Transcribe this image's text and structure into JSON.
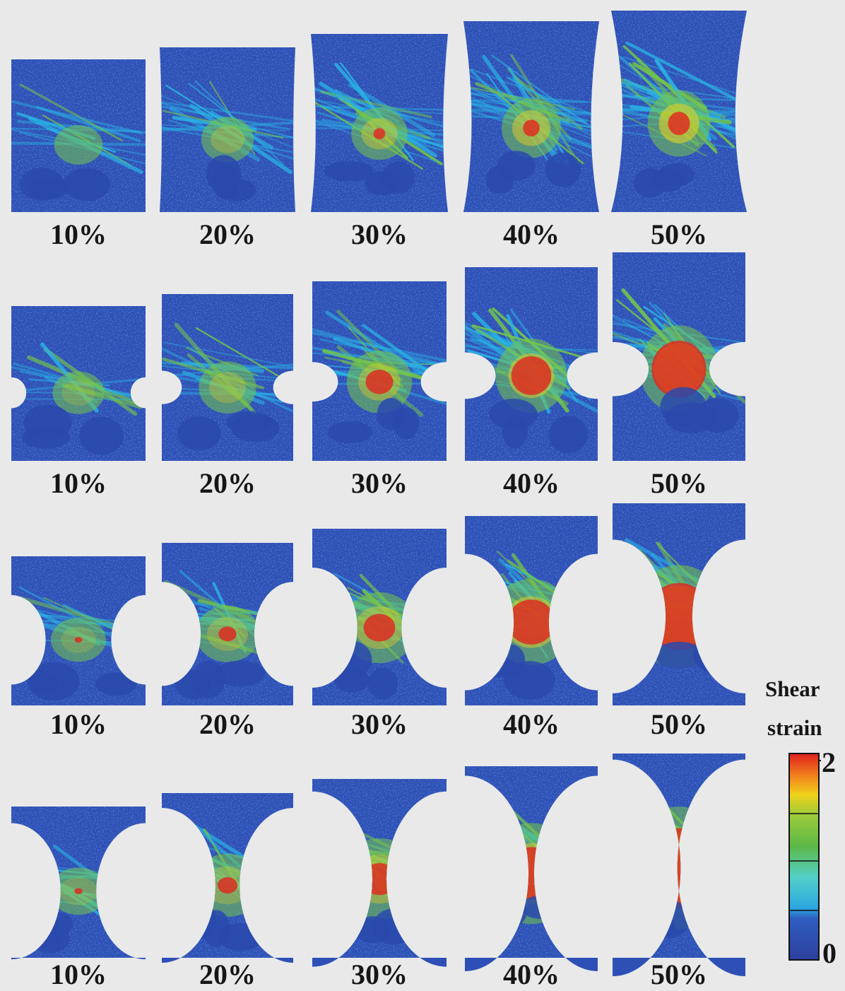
{
  "colormap": {
    "blue": "#2d4fb6",
    "cyan": "#29b5e6",
    "green": "#74c64a",
    "yellow": "#e3d024",
    "red": "#e1241e"
  },
  "rows": [
    {
      "notch": "none",
      "labels": [
        "10%",
        "20%",
        "30%",
        "40%",
        "50%"
      ]
    },
    {
      "notch": "small",
      "labels": [
        "10%",
        "20%",
        "30%",
        "40%",
        "50%"
      ]
    },
    {
      "notch": "medium",
      "labels": [
        "10%",
        "20%",
        "30%",
        "40%",
        "50%"
      ]
    },
    {
      "notch": "large",
      "labels": [
        "10%",
        "20%",
        "30%",
        "40%",
        "50%"
      ]
    }
  ],
  "legend": {
    "title_line1": "Shear",
    "title_line2": "strain",
    "max_label": "2",
    "min_label": "0",
    "range": [
      0,
      2
    ],
    "colors": [
      "#2d4fb6",
      "#29b5e6",
      "#74c64a",
      "#e3d024",
      "#e1241e"
    ]
  }
}
